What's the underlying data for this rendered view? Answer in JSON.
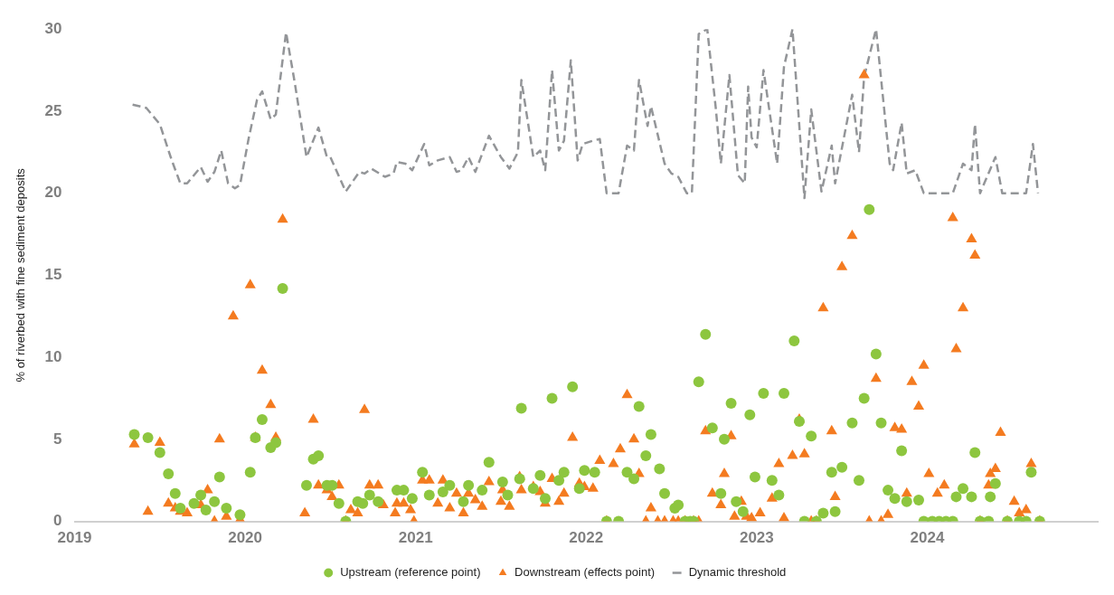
{
  "chart_data": {
    "type": "scatter",
    "ylabel": "% of riverbed with fine sediment deposits",
    "xlim": [
      2019,
      2025
    ],
    "xticks": [
      2019,
      2020,
      2021,
      2022,
      2023,
      2024
    ],
    "ylim": [
      0,
      30
    ],
    "yticks": [
      0,
      5,
      10,
      15,
      20,
      25,
      30
    ],
    "grid": false,
    "legend": "bottom",
    "series": [
      {
        "name": "Upstream (reference point)",
        "marker": "circle",
        "color": "#8dc63f",
        "x": [
          2019.35,
          2019.43,
          2019.5,
          2019.55,
          2019.59,
          2019.62,
          2019.7,
          2019.74,
          2019.77,
          2019.82,
          2019.85,
          2019.89,
          2019.97,
          2020.03,
          2020.06,
          2020.1,
          2020.15,
          2020.18,
          2020.22,
          2020.36,
          2020.4,
          2020.43,
          2020.48,
          2020.51,
          2020.55,
          2020.59,
          2020.66,
          2020.69,
          2020.73,
          2020.78,
          2020.89,
          2020.93,
          2020.98,
          2021.04,
          2021.08,
          2021.16,
          2021.2,
          2021.28,
          2021.31,
          2021.39,
          2021.43,
          2021.51,
          2021.54,
          2021.61,
          2021.62,
          2021.69,
          2021.73,
          2021.76,
          2021.8,
          2021.84,
          2021.87,
          2021.92,
          2021.96,
          2021.99,
          2022.05,
          2022.12,
          2022.19,
          2022.24,
          2022.28,
          2022.31,
          2022.35,
          2022.38,
          2022.43,
          2022.46,
          2022.52,
          2022.54,
          2022.58,
          2022.61,
          2022.63,
          2022.66,
          2022.7,
          2022.74,
          2022.79,
          2022.81,
          2022.85,
          2022.88,
          2022.92,
          2022.96,
          2022.99,
          2023.04,
          2023.09,
          2023.13,
          2023.16,
          2023.22,
          2023.25,
          2023.28,
          2023.32,
          2023.35,
          2023.39,
          2023.44,
          2023.46,
          2023.5,
          2023.56,
          2023.6,
          2023.63,
          2023.66,
          2023.7,
          2023.73,
          2023.77,
          2023.81,
          2023.85,
          2023.88,
          2023.95,
          2023.98,
          2024.03,
          2024.07,
          2024.11,
          2024.15,
          2024.17,
          2024.21,
          2024.26,
          2024.28,
          2024.31,
          2024.36,
          2024.37,
          2024.4,
          2024.47,
          2024.54,
          2024.58,
          2024.61,
          2024.66
        ],
        "values": [
          5.3,
          5.1,
          4.2,
          2.9,
          1.7,
          0.8,
          1.1,
          1.6,
          0.7,
          1.2,
          2.7,
          0.8,
          0.4,
          3.0,
          5.1,
          6.2,
          4.5,
          4.8,
          14.2,
          2.2,
          3.8,
          4.0,
          2.2,
          2.2,
          1.1,
          0,
          1.2,
          1.1,
          1.6,
          1.2,
          1.9,
          1.9,
          1.4,
          3.0,
          1.6,
          1.8,
          2.2,
          1.2,
          2.2,
          1.9,
          3.6,
          2.4,
          1.6,
          2.6,
          6.9,
          2.0,
          2.8,
          1.4,
          7.5,
          2.5,
          3.0,
          8.2,
          2.0,
          3.1,
          3.0,
          0,
          0,
          3.0,
          2.6,
          7.0,
          4.0,
          5.3,
          3.2,
          1.7,
          0.8,
          1.0,
          0,
          0,
          0,
          8.5,
          11.4,
          5.7,
          1.7,
          5.0,
          7.2,
          1.2,
          0.6,
          6.5,
          2.7,
          7.8,
          2.5,
          1.6,
          7.8,
          11.0,
          6.1,
          0,
          5.2,
          0,
          0.5,
          3.0,
          0.6,
          3.3,
          6.0,
          2.5,
          7.5,
          19.0,
          10.2,
          6.0,
          1.9,
          1.4,
          4.3,
          1.2,
          1.3,
          0,
          0,
          0,
          0,
          0,
          1.5,
          2.0,
          1.5,
          4.2,
          0,
          0,
          1.5,
          2.3,
          0,
          0,
          0,
          3.0,
          0
        ]
      },
      {
        "name": "Downstream (effects point)",
        "marker": "triangle",
        "color": "#f47b20",
        "x": [
          2019.35,
          2019.43,
          2019.5,
          2019.55,
          2019.59,
          2019.62,
          2019.66,
          2019.74,
          2019.78,
          2019.82,
          2019.85,
          2019.89,
          2019.93,
          2019.97,
          2020.03,
          2020.06,
          2020.1,
          2020.15,
          2020.18,
          2020.22,
          2020.35,
          2020.4,
          2020.43,
          2020.48,
          2020.51,
          2020.55,
          2020.59,
          2020.62,
          2020.66,
          2020.7,
          2020.73,
          2020.78,
          2020.81,
          2020.88,
          2020.89,
          2020.93,
          2020.97,
          2020.99,
          2021.04,
          2021.08,
          2021.13,
          2021.16,
          2021.2,
          2021.24,
          2021.28,
          2021.31,
          2021.35,
          2021.39,
          2021.43,
          2021.5,
          2021.51,
          2021.55,
          2021.61,
          2021.62,
          2021.69,
          2021.73,
          2021.76,
          2021.8,
          2021.84,
          2021.87,
          2021.92,
          2021.96,
          2021.99,
          2022.04,
          2022.08,
          2022.12,
          2022.16,
          2022.2,
          2022.24,
          2022.28,
          2022.31,
          2022.35,
          2022.38,
          2022.42,
          2022.46,
          2022.51,
          2022.54,
          2022.58,
          2022.63,
          2022.66,
          2022.7,
          2022.74,
          2022.79,
          2022.81,
          2022.85,
          2022.87,
          2022.91,
          2022.94,
          2022.97,
          2023.02,
          2023.09,
          2023.13,
          2023.16,
          2023.21,
          2023.25,
          2023.28,
          2023.32,
          2023.35,
          2023.39,
          2023.44,
          2023.46,
          2023.5,
          2023.56,
          2023.63,
          2023.66,
          2023.7,
          2023.73,
          2023.77,
          2023.81,
          2023.85,
          2023.88,
          2023.91,
          2023.95,
          2023.98,
          2024.01,
          2024.06,
          2024.1,
          2024.15,
          2024.17,
          2024.21,
          2024.26,
          2024.28,
          2024.31,
          2024.36,
          2024.37,
          2024.4,
          2024.43,
          2024.47,
          2024.51,
          2024.54,
          2024.58,
          2024.61,
          2024.66
        ],
        "values": [
          4.7,
          0.6,
          4.8,
          1.1,
          0.8,
          0.6,
          0.5,
          1.0,
          1.9,
          0,
          5.0,
          0.3,
          12.5,
          0.1,
          14.4,
          5.1,
          9.2,
          7.1,
          5.1,
          18.4,
          0.5,
          6.2,
          2.2,
          1.9,
          1.5,
          2.2,
          0,
          0.7,
          0.5,
          6.8,
          2.2,
          2.2,
          1.0,
          0.5,
          1.1,
          1.1,
          0.7,
          0,
          2.5,
          2.5,
          1.1,
          2.5,
          0.8,
          1.7,
          0.5,
          1.7,
          1.3,
          0.9,
          2.4,
          1.2,
          1.9,
          0.9,
          2.7,
          1.9,
          2.1,
          1.8,
          1.1,
          2.6,
          1.2,
          1.7,
          5.1,
          2.3,
          2.1,
          2.0,
          3.7,
          0,
          3.5,
          4.4,
          7.7,
          5.0,
          2.9,
          0,
          0.8,
          0,
          0,
          0,
          0,
          0,
          0,
          0,
          5.5,
          1.7,
          1.0,
          2.9,
          5.2,
          0.3,
          1.2,
          0.3,
          0.2,
          0.5,
          1.4,
          3.5,
          0.2,
          4.0,
          6.2,
          4.1,
          0,
          0,
          13.0,
          5.5,
          1.5,
          15.5,
          17.4,
          27.2,
          0,
          8.7,
          0,
          0.4,
          5.7,
          5.6,
          1.7,
          8.5,
          7.0,
          9.5,
          2.9,
          1.7,
          2.2,
          18.5,
          10.5,
          13.0,
          17.2,
          16.2,
          0,
          2.2,
          2.9,
          3.2,
          5.4,
          0,
          1.2,
          0.5,
          0.7,
          3.5,
          0
        ]
      },
      {
        "name": "Dynamic threshold",
        "type": "line",
        "marker": "none",
        "line_style": "dashed",
        "color": "#939598",
        "x": [
          2019.34,
          2019.42,
          2019.5,
          2019.57,
          2019.62,
          2019.66,
          2019.74,
          2019.78,
          2019.82,
          2019.86,
          2019.9,
          2019.94,
          2019.97,
          2020.02,
          2020.07,
          2020.1,
          2020.15,
          2020.18,
          2020.24,
          2020.29,
          2020.36,
          2020.43,
          2020.48,
          2020.5,
          2020.59,
          2020.67,
          2020.7,
          2020.74,
          2020.82,
          2020.87,
          2020.89,
          2020.94,
          2020.98,
          2021.05,
          2021.08,
          2021.13,
          2021.2,
          2021.24,
          2021.27,
          2021.31,
          2021.35,
          2021.43,
          2021.5,
          2021.55,
          2021.6,
          2021.62,
          2021.69,
          2021.73,
          2021.76,
          2021.8,
          2021.84,
          2021.87,
          2021.91,
          2021.95,
          2021.98,
          2022.04,
          2022.08,
          2022.12,
          2022.19,
          2022.24,
          2022.28,
          2022.31,
          2022.36,
          2022.38,
          2022.46,
          2022.5,
          2022.54,
          2022.59,
          2022.62,
          2022.66,
          2022.71,
          2022.76,
          2022.79,
          2022.84,
          2022.89,
          2022.93,
          2022.95,
          2022.97,
          2023.0,
          2023.04,
          2023.12,
          2023.16,
          2023.21,
          2023.28,
          2023.32,
          2023.38,
          2023.44,
          2023.46,
          2023.56,
          2023.6,
          2023.63,
          2023.7,
          2023.78,
          2023.8,
          2023.85,
          2023.88,
          2023.93,
          2023.98,
          2024.15,
          2024.21,
          2024.26,
          2024.28,
          2024.31,
          2024.4,
          2024.44,
          2024.58,
          2024.62,
          2024.65
        ],
        "values": [
          25.4,
          25.2,
          24.2,
          22.0,
          20.6,
          20.6,
          21.6,
          20.7,
          21.3,
          22.6,
          20.6,
          20.3,
          20.5,
          23.3,
          25.7,
          26.2,
          24.5,
          24.8,
          29.8,
          26.8,
          22.2,
          24.0,
          22.2,
          22.2,
          20.1,
          21.3,
          21.2,
          21.5,
          21.0,
          21.2,
          21.9,
          21.8,
          21.4,
          23.0,
          21.7,
          22.0,
          22.2,
          21.3,
          21.4,
          22.2,
          21.3,
          23.5,
          22.2,
          21.5,
          22.5,
          26.9,
          22.2,
          22.6,
          21.4,
          27.5,
          22.6,
          23.2,
          28.1,
          22.0,
          23.0,
          23.2,
          23.3,
          20,
          20,
          22.9,
          22.6,
          26.9,
          24.1,
          25.3,
          21.8,
          21.2,
          21.0,
          20,
          20,
          29.7,
          30,
          25.2,
          21.8,
          27.2,
          21.1,
          20.6,
          26.5,
          23.4,
          22.8,
          27.5,
          21.8,
          27.7,
          30,
          19.7,
          25.1,
          20.1,
          22.9,
          20.6,
          26.0,
          22.5,
          27.1,
          30,
          21.8,
          21.4,
          24.3,
          21.2,
          21.4,
          20,
          20,
          21.8,
          21.4,
          24.2,
          20,
          22.2,
          20,
          20,
          23.0,
          20
        ]
      }
    ]
  }
}
